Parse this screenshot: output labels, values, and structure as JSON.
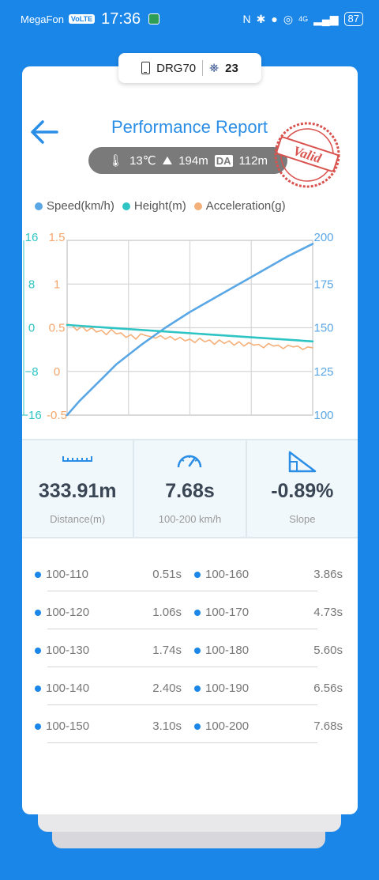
{
  "status_bar": {
    "carrier": "MegaFon",
    "volte": "VoLTE",
    "time": "17:36",
    "network": "4G",
    "battery": "87"
  },
  "device": {
    "name": "DRG70",
    "satellites": "23"
  },
  "header": {
    "title": "Performance Report",
    "stamp_label": "Valid",
    "temperature": "13℃",
    "altitude": "194m",
    "da_label": "DA",
    "density_altitude": "112m"
  },
  "chart_data": {
    "type": "line",
    "legend": [
      "Speed(km/h)",
      "Height(m)",
      "Acceleration(g)"
    ],
    "legend_colors": [
      "#5aa7e6",
      "#2ec4c4",
      "#f5b07a"
    ],
    "left_axis_height": {
      "ticks": [
        "16",
        "8",
        "0",
        "−8",
        "−16"
      ],
      "range": [
        -16,
        16
      ]
    },
    "left_axis_accel": {
      "ticks": [
        "1.5",
        "1",
        "0.5",
        "0",
        "-0.5"
      ],
      "range": [
        -0.5,
        1.5
      ]
    },
    "right_axis_speed": {
      "ticks": [
        "200",
        "175",
        "150",
        "125",
        "100"
      ],
      "range": [
        100,
        200
      ]
    },
    "grid": true,
    "series": [
      {
        "name": "Speed(km/h)",
        "axis": "speed",
        "x": [
          0,
          0.05,
          0.1,
          0.15,
          0.2,
          0.3,
          0.4,
          0.5,
          0.6,
          0.7,
          0.8,
          0.9,
          1.0
        ],
        "y": [
          100,
          108,
          115,
          122,
          129,
          140,
          150,
          159,
          167,
          175,
          183,
          191,
          198
        ]
      },
      {
        "name": "Height(m)",
        "axis": "height",
        "x": [
          0,
          1
        ],
        "y": [
          0.5,
          -2.5
        ]
      },
      {
        "name": "Acceleration(g)",
        "axis": "accel",
        "x": [
          0,
          0.02,
          0.04,
          0.06,
          0.08,
          0.1,
          0.12,
          0.14,
          0.16,
          0.18,
          0.2,
          0.22,
          0.24,
          0.26,
          0.28,
          0.3,
          0.32,
          0.34,
          0.36,
          0.38,
          0.4,
          0.42,
          0.44,
          0.46,
          0.48,
          0.5,
          0.52,
          0.54,
          0.56,
          0.58,
          0.6,
          0.62,
          0.64,
          0.66,
          0.68,
          0.7,
          0.72,
          0.74,
          0.76,
          0.78,
          0.8,
          0.82,
          0.84,
          0.86,
          0.88,
          0.9,
          0.92,
          0.94,
          0.96,
          0.98,
          1.0
        ],
        "y": [
          0.54,
          0.53,
          0.47,
          0.52,
          0.46,
          0.5,
          0.45,
          0.47,
          0.42,
          0.48,
          0.43,
          0.44,
          0.39,
          0.42,
          0.37,
          0.43,
          0.41,
          0.4,
          0.38,
          0.41,
          0.37,
          0.4,
          0.36,
          0.39,
          0.35,
          0.37,
          0.33,
          0.38,
          0.34,
          0.36,
          0.31,
          0.36,
          0.32,
          0.35,
          0.3,
          0.34,
          0.29,
          0.33,
          0.3,
          0.31,
          0.27,
          0.32,
          0.29,
          0.3,
          0.26,
          0.3,
          0.28,
          0.29,
          0.25,
          0.28,
          0.27
        ]
      }
    ]
  },
  "stats": [
    {
      "value": "333.91m",
      "label": "Distance(m)"
    },
    {
      "value": "7.68s",
      "label": "100-200 km/h"
    },
    {
      "value": "-0.89%",
      "label": "Slope"
    }
  ],
  "splits": [
    {
      "left_range": "100-110",
      "left_time": "0.51s",
      "right_range": "100-160",
      "right_time": "3.86s"
    },
    {
      "left_range": "100-120",
      "left_time": "1.06s",
      "right_range": "100-170",
      "right_time": "4.73s"
    },
    {
      "left_range": "100-130",
      "left_time": "1.74s",
      "right_range": "100-180",
      "right_time": "5.60s"
    },
    {
      "left_range": "100-140",
      "left_time": "2.40s",
      "right_range": "100-190",
      "right_time": "6.56s"
    },
    {
      "left_range": "100-150",
      "left_time": "3.10s",
      "right_range": "100-200",
      "right_time": "7.68s"
    }
  ]
}
